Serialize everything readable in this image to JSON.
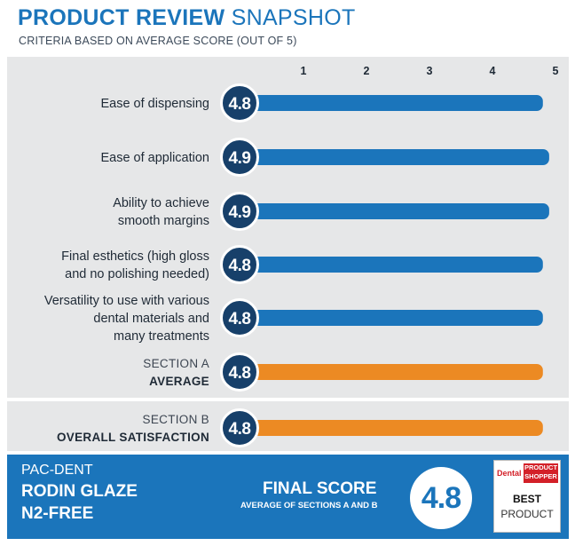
{
  "header": {
    "title_bold": "PRODUCT REVIEW",
    "title_light": "SNAPSHOT",
    "subtitle": "CRITERIA BASED ON AVERAGE SCORE (OUT OF 5)"
  },
  "chart_data": {
    "type": "bar",
    "orientation": "horizontal",
    "x_ticks": [
      "1",
      "2",
      "3",
      "4",
      "5"
    ],
    "xlim": [
      0,
      5
    ],
    "grid": false,
    "legend": "none",
    "colors": {
      "criteria": "#1b75bb",
      "average": "#ec8a23",
      "badge": "#17406a"
    },
    "categories": [
      {
        "lines": [
          "Ease of dispensing"
        ],
        "value": 4.8,
        "label": "4.8",
        "group": "criteria"
      },
      {
        "lines": [
          "Ease of application"
        ],
        "value": 4.9,
        "label": "4.9",
        "group": "criteria"
      },
      {
        "lines": [
          "Ability to achieve",
          "smooth margins"
        ],
        "value": 4.9,
        "label": "4.9",
        "group": "criteria"
      },
      {
        "lines": [
          "Final esthetics (high gloss",
          "and no polishing needed)"
        ],
        "value": 4.8,
        "label": "4.8",
        "group": "criteria"
      },
      {
        "lines": [
          "Versatility to use with various",
          "dental materials and",
          "many treatments"
        ],
        "value": 4.8,
        "label": "4.8",
        "group": "criteria"
      },
      {
        "lines": [
          "SECTION A",
          "AVERAGE"
        ],
        "value": 4.8,
        "label": "4.8",
        "group": "average"
      },
      {
        "lines": [
          "SECTION B",
          "OVERALL SATISFACTION"
        ],
        "value": 4.8,
        "label": "4.8",
        "group": "average"
      }
    ]
  },
  "final": {
    "maker": "PAC-DENT",
    "product_line1": "RODIN GLAZE",
    "product_line2": "N2-FREE",
    "label": "FINAL SCORE",
    "sublabel": "AVERAGE OF SECTIONS A AND B",
    "value": "4.8"
  },
  "logo": {
    "brand_left": "Dental",
    "brand_box_line1": "PRODUCT",
    "brand_box_line2": "SHOPPER",
    "best": "BEST",
    "product": "PRODUCT"
  }
}
